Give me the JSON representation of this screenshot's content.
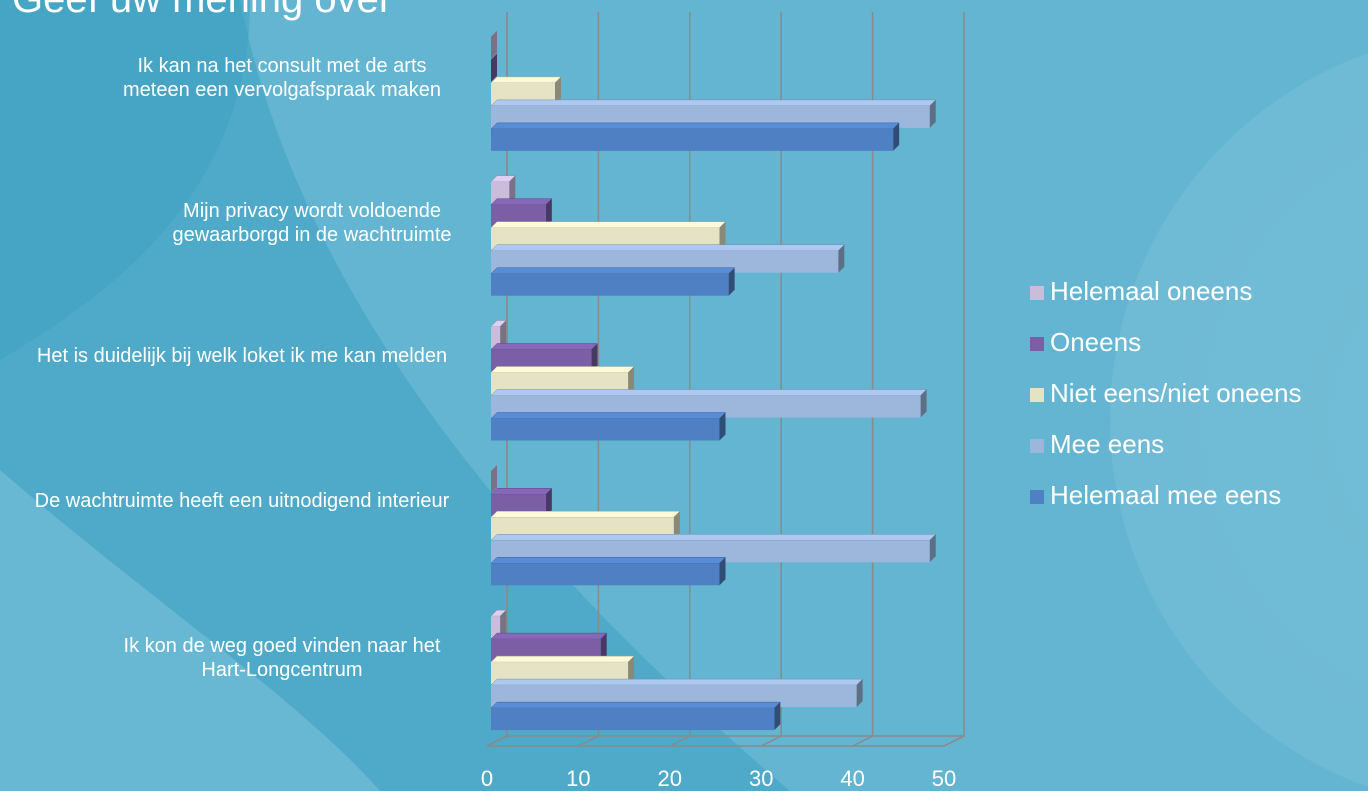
{
  "chart_data": {
    "type": "bar3d_horizontal",
    "title": "Geef uw mening over",
    "categories": [
      "Ik kan na het consult met de arts meteen een vervolgafspraak maken",
      "Mijn privacy wordt voldoende gewaarborgd in de wachtruimte",
      "Het is duidelijk bij welk loket ik me kan melden",
      "De wachtruimte heeft een uitnodigend interieur",
      "Ik kon de weg goed vinden naar het Hart-Longcentrum"
    ],
    "series": [
      {
        "name": "Helemaal oneens",
        "color": "#cbbcdc",
        "values": [
          0,
          2,
          1,
          0,
          1
        ]
      },
      {
        "name": "Oneens",
        "color": "#7b5ea6",
        "values": [
          0,
          6,
          11,
          6,
          12
        ]
      },
      {
        "name": "Niet eens/niet oneens",
        "color": "#e6e3c4",
        "values": [
          7,
          25,
          15,
          20,
          15
        ]
      },
      {
        "name": "Mee eens",
        "color": "#9db7dc",
        "values": [
          48,
          38,
          47,
          48,
          40
        ]
      },
      {
        "name": "Helemaal mee eens",
        "color": "#4f80c3",
        "values": [
          44,
          26,
          25,
          25,
          31
        ]
      }
    ],
    "xlim": [
      0,
      50
    ],
    "xticks": [
      0,
      10,
      20,
      30,
      40,
      50
    ],
    "grid": true,
    "legend": "right"
  }
}
